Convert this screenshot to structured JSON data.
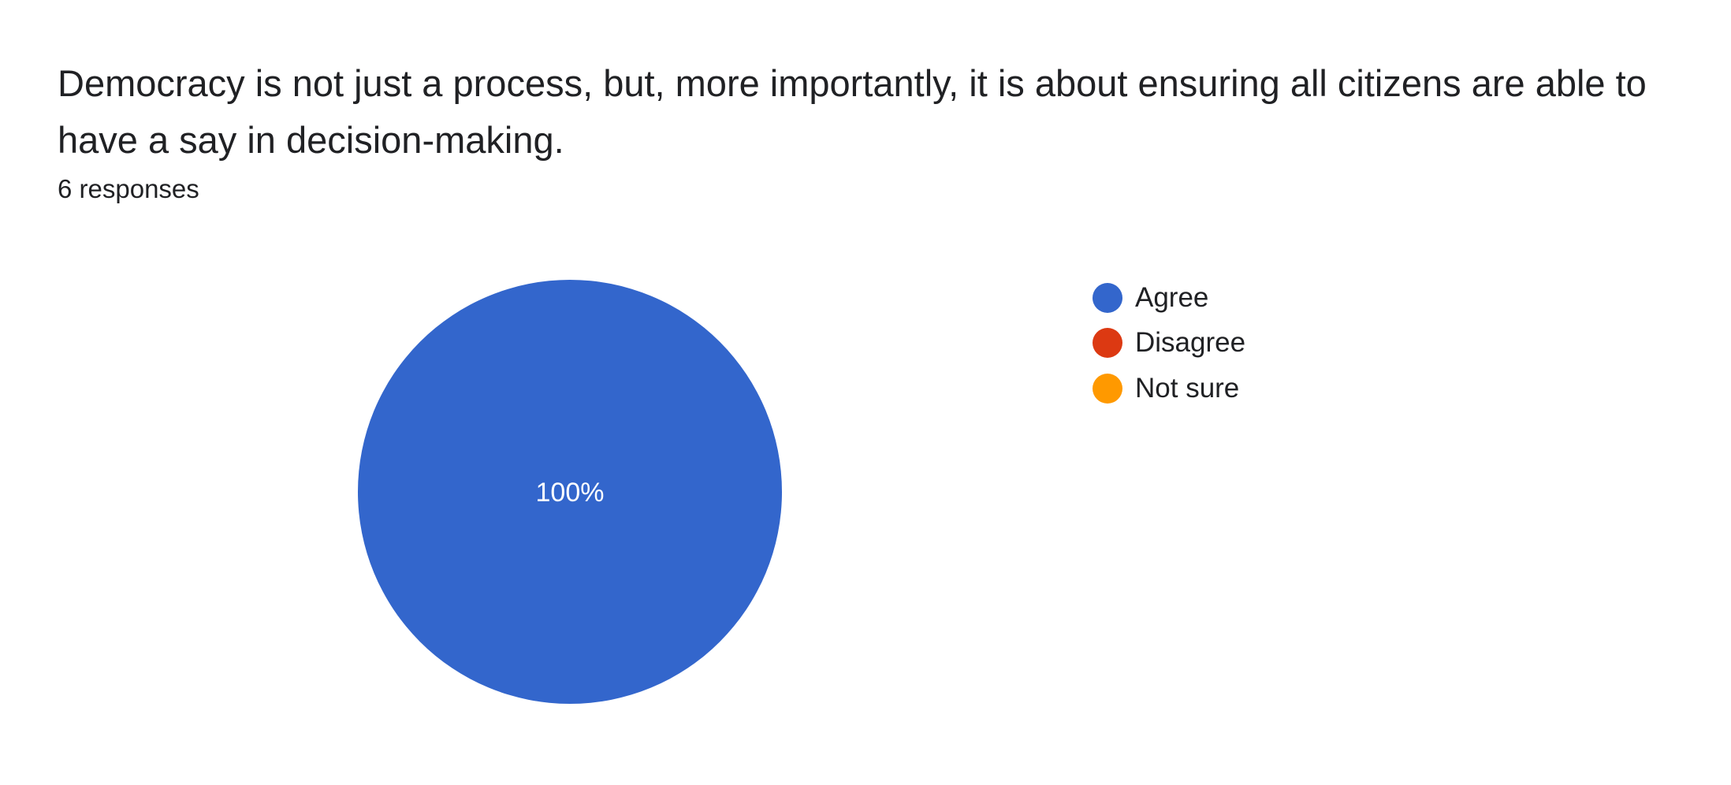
{
  "question": {
    "title": "Democracy is not just a process, but, more importantly, it is about ensuring all citizens are able to have a say in decision-making.",
    "responses": "6 responses"
  },
  "chart_data": {
    "type": "pie",
    "categories": [
      "Agree",
      "Disagree",
      "Not sure"
    ],
    "values": [
      6,
      0,
      0
    ],
    "colors": [
      "#3366cc",
      "#dc3912",
      "#ff9900"
    ],
    "slice_labels": [
      "100%",
      "",
      ""
    ],
    "title": "",
    "legend": "right"
  }
}
